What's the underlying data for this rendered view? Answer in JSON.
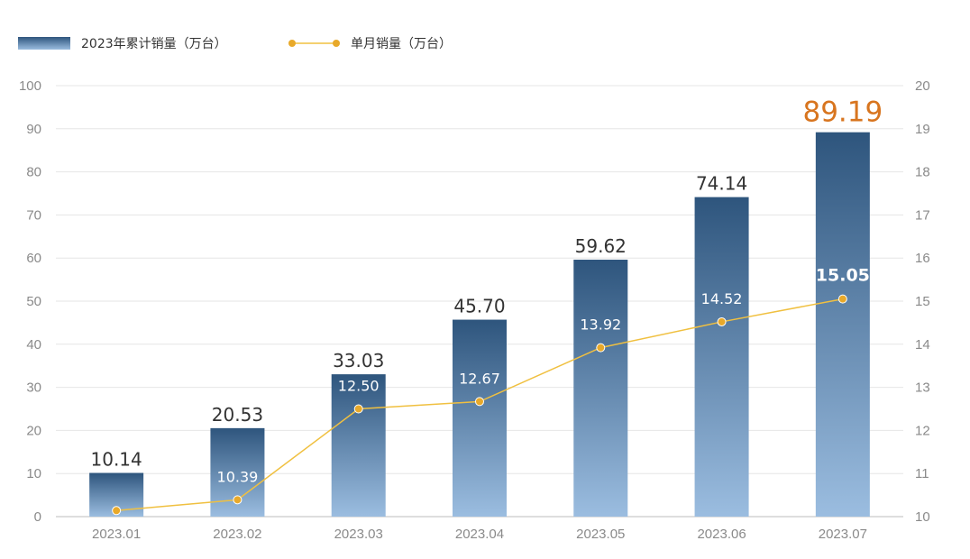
{
  "chart_data": {
    "type": "bar",
    "categories": [
      "2023.01",
      "2023.02",
      "2023.03",
      "2023.04",
      "2023.05",
      "2023.06",
      "2023.07"
    ],
    "series": [
      {
        "name": "2023年累计销量（万台）",
        "type": "bar",
        "axis": "left",
        "values": [
          10.14,
          20.53,
          33.03,
          45.7,
          59.62,
          74.14,
          89.19
        ],
        "labels": [
          "10.14",
          "20.53",
          "33.03",
          "45.70",
          "59.62",
          "74.14",
          "89.19"
        ]
      },
      {
        "name": "单月销量（万台）",
        "type": "line",
        "axis": "right",
        "values": [
          10.14,
          10.39,
          12.5,
          12.67,
          13.92,
          14.52,
          15.05
        ],
        "labels": [
          "",
          "10.39",
          "12.50",
          "12.67",
          "13.92",
          "14.52",
          "15.05"
        ]
      }
    ],
    "y_left": {
      "lim": [
        0,
        100
      ],
      "ticks": [
        "0",
        "10",
        "20",
        "30",
        "40",
        "50",
        "60",
        "70",
        "80",
        "90",
        "100"
      ]
    },
    "y_right": {
      "lim": [
        10,
        20
      ],
      "ticks": [
        "10",
        "11",
        "12",
        "13",
        "14",
        "15",
        "16",
        "17",
        "18",
        "19",
        "20"
      ]
    },
    "grid": true,
    "legend": "top-left",
    "colors": {
      "bar_top": "#2e557d",
      "bar_bottom": "#9bbde0",
      "line": "#f0c040",
      "marker": "#e8a92a",
      "highlight_label": "#d8751f",
      "grid": "#e6e6e6",
      "axis": "#bdbdbd"
    }
  }
}
